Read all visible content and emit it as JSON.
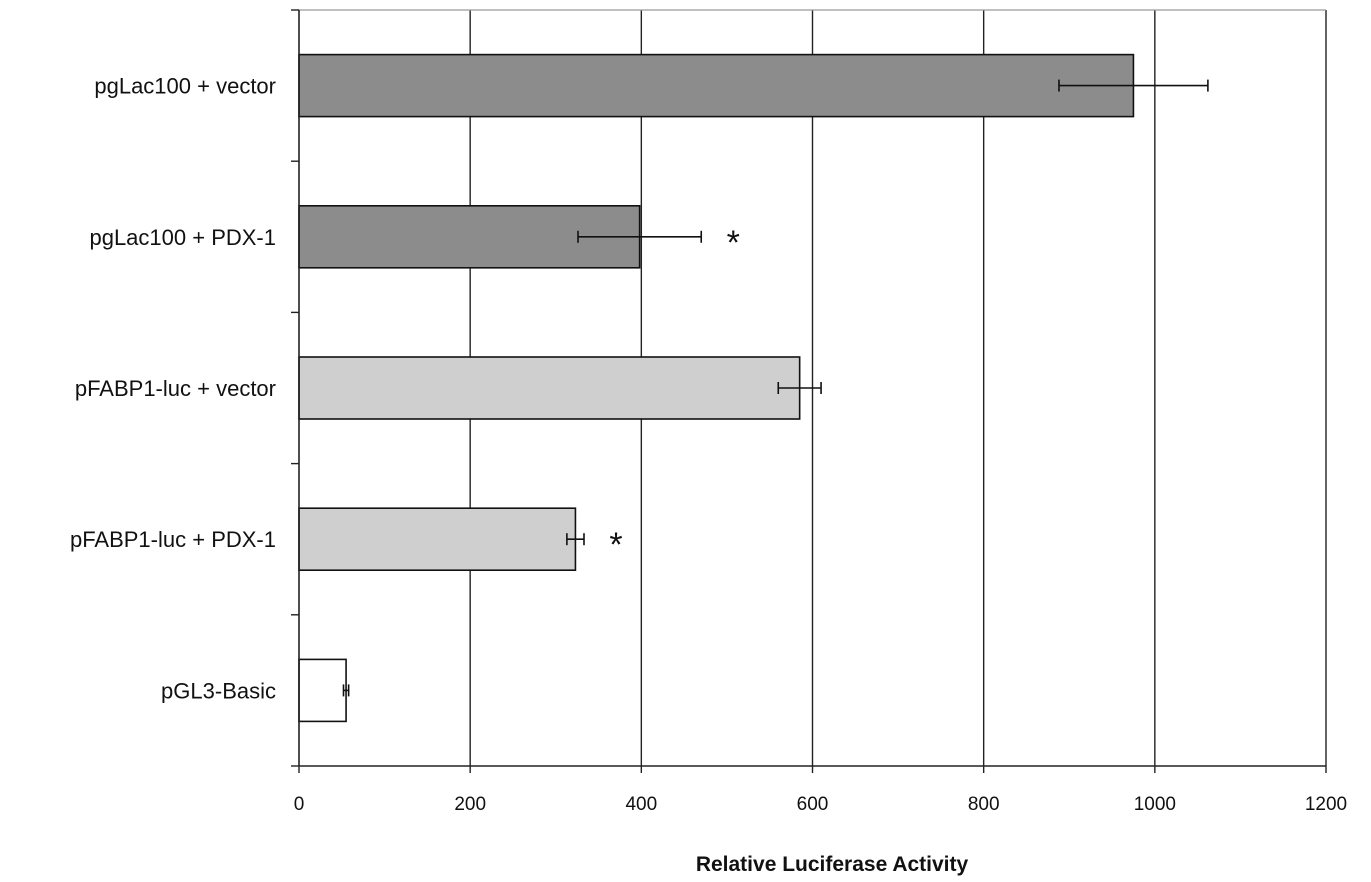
{
  "chart_data": {
    "type": "bar",
    "orientation": "horizontal",
    "title": "",
    "xlabel": "Relative Luciferase Activity",
    "ylabel": "",
    "xlim": [
      0,
      1200
    ],
    "x_ticks": [
      0,
      200,
      400,
      600,
      800,
      1000,
      1200
    ],
    "x_tick_labels": [
      "0",
      "200",
      "400",
      "600",
      "800",
      "1000",
      "1200"
    ],
    "grid": "vertical major gridlines on",
    "legend": "none",
    "categories": [
      "pgLac100 + vector",
      "pgLac100 + PDX-1",
      "pFABP1-luc + vector",
      "pFABP1-luc + PDX-1",
      "pGL3-Basic"
    ],
    "values": [
      975,
      398,
      585,
      323,
      55
    ],
    "errors": [
      87,
      72,
      25,
      10,
      3
    ],
    "significance": [
      "",
      "*",
      "",
      "*",
      ""
    ],
    "bar_colors": [
      "#8c8c8c",
      "#8c8c8c",
      "#cfcfcf",
      "#cfcfcf",
      "#ffffff"
    ]
  }
}
